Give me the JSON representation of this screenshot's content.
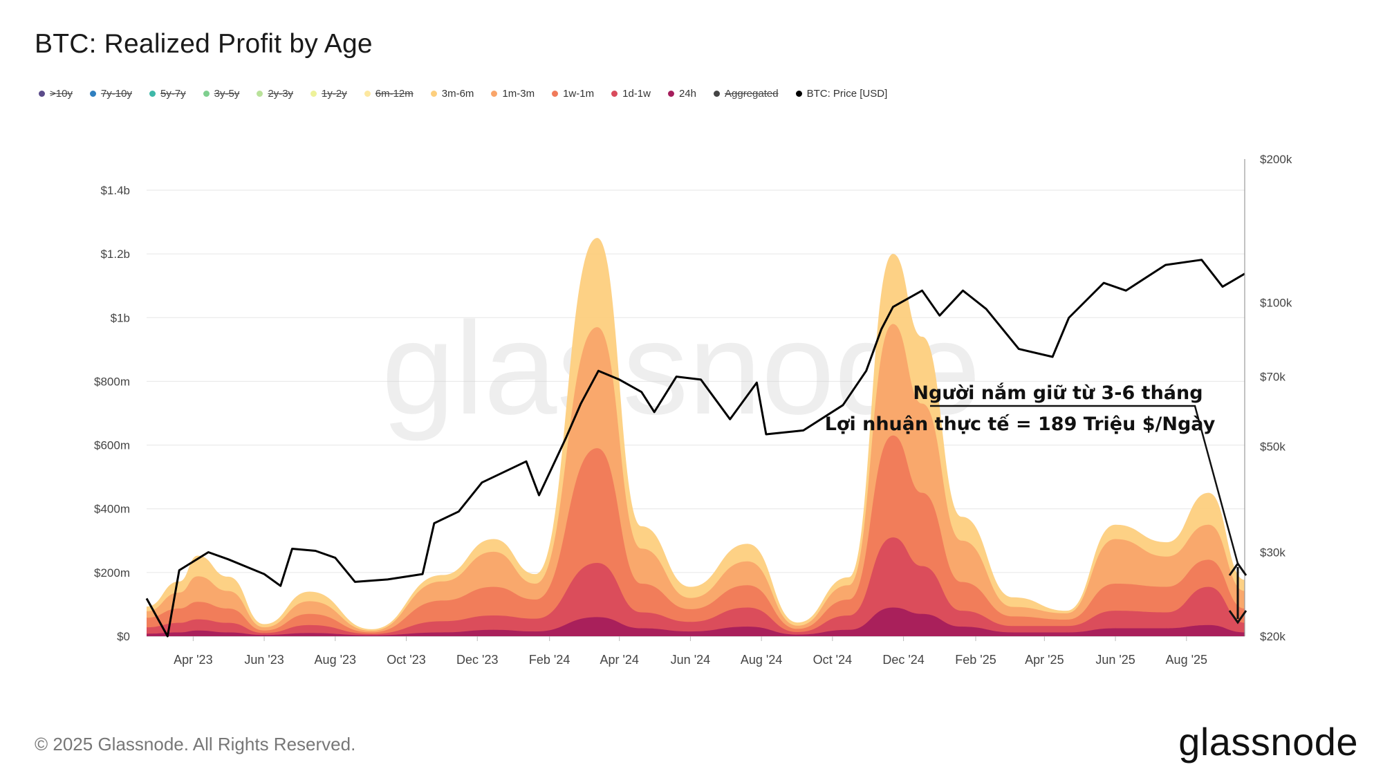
{
  "title": "BTC: Realized Profit by Age",
  "legend": [
    {
      "label": ">10y",
      "color": "#5b4b8a",
      "active": false
    },
    {
      "label": "7y-10y",
      "color": "#2f7fbf",
      "active": false
    },
    {
      "label": "5y-7y",
      "color": "#3fb8a8",
      "active": false
    },
    {
      "label": "3y-5y",
      "color": "#7fcf8f",
      "active": false
    },
    {
      "label": "2y-3y",
      "color": "#b9e29a",
      "active": false
    },
    {
      "label": "1y-2y",
      "color": "#eef29a",
      "active": false
    },
    {
      "label": "6m-12m",
      "color": "#fde8a0",
      "active": false
    },
    {
      "label": "3m-6m",
      "color": "#fdcf7e",
      "active": true
    },
    {
      "label": "1m-3m",
      "color": "#f9a56a",
      "active": true
    },
    {
      "label": "1w-1m",
      "color": "#f07a5a",
      "active": true
    },
    {
      "label": "1d-1w",
      "color": "#d94b5c",
      "active": true
    },
    {
      "label": "24h",
      "color": "#a61e5c",
      "active": true
    },
    {
      "label": "Aggregated",
      "color": "#444444",
      "active": false
    },
    {
      "label": "BTC: Price [USD]",
      "color": "#000000",
      "active": true
    }
  ],
  "chart_data": {
    "type": "area",
    "stacked": true,
    "y_left": {
      "ticks": [
        "$0",
        "$200m",
        "$400m",
        "$600m",
        "$800m",
        "$1b",
        "$1.2b",
        "$1.4b"
      ],
      "values": [
        0,
        200,
        400,
        600,
        800,
        1000,
        1200,
        1400
      ],
      "unit": "millions USD",
      "range": [
        0,
        1400
      ]
    },
    "y_right": {
      "ticks": [
        "$20k",
        "$30k",
        "$50k",
        "$70k",
        "$100k",
        "$200k"
      ],
      "values": [
        20000,
        30000,
        50000,
        70000,
        100000,
        200000
      ],
      "scale": "log",
      "range": [
        20000,
        200000
      ]
    },
    "x_ticks": [
      "Apr '23",
      "Jun '23",
      "Aug '23",
      "Oct '23",
      "Dec '23",
      "Feb '24",
      "Apr '24",
      "Jun '24",
      "Aug '24",
      "Oct '24",
      "Dec '24",
      "Feb '25",
      "Apr '25",
      "Jun '25",
      "Aug '25"
    ],
    "x_tick_dates": [
      "2023-04-01",
      "2023-06-01",
      "2023-08-01",
      "2023-10-01",
      "2023-12-01",
      "2024-02-01",
      "2024-04-01",
      "2024-06-01",
      "2024-08-01",
      "2024-10-01",
      "2024-12-01",
      "2025-02-01",
      "2025-04-01",
      "2025-06-01",
      "2025-08-01"
    ],
    "x_range": [
      "2023-02-20",
      "2025-09-20"
    ],
    "grid": true,
    "series": [
      {
        "name": "3m-6m",
        "color": "#fdcf7e",
        "x": [
          "2023-02-20",
          "2023-03-20",
          "2023-04-05",
          "2023-05-01",
          "2023-06-01",
          "2023-07-10",
          "2023-09-01",
          "2023-11-01",
          "2023-12-15",
          "2024-01-20",
          "2024-03-13",
          "2024-04-20",
          "2024-06-01",
          "2024-07-20",
          "2024-09-01",
          "2024-10-15",
          "2024-11-22",
          "2024-12-17",
          "2025-01-20",
          "2025-03-05",
          "2025-04-20",
          "2025-06-01",
          "2025-07-15",
          "2025-08-20",
          "2025-09-20"
        ],
        "values": [
          15,
          35,
          65,
          45,
          10,
          30,
          5,
          20,
          40,
          30,
          280,
          70,
          35,
          55,
          10,
          25,
          220,
          210,
          75,
          30,
          8,
          45,
          45,
          100,
          35
        ]
      },
      {
        "name": "1m-3m",
        "color": "#f9a56a",
        "x": [
          "2023-02-20",
          "2023-03-20",
          "2023-04-05",
          "2023-05-01",
          "2023-06-01",
          "2023-07-10",
          "2023-09-01",
          "2023-11-01",
          "2023-12-15",
          "2024-01-20",
          "2024-03-13",
          "2024-04-20",
          "2024-06-01",
          "2024-07-20",
          "2024-09-01",
          "2024-10-15",
          "2024-11-22",
          "2024-12-17",
          "2025-01-20",
          "2025-03-05",
          "2025-04-20",
          "2025-06-01",
          "2025-07-15",
          "2025-08-20",
          "2025-09-20"
        ],
        "values": [
          20,
          50,
          80,
          55,
          10,
          40,
          5,
          60,
          110,
          50,
          380,
          110,
          35,
          75,
          10,
          45,
          350,
          280,
          130,
          30,
          20,
          140,
          95,
          110,
          55
        ]
      },
      {
        "name": "1w-1m",
        "color": "#f07a5a",
        "x": [
          "2023-02-20",
          "2023-03-20",
          "2023-04-05",
          "2023-05-01",
          "2023-06-01",
          "2023-07-10",
          "2023-09-01",
          "2023-11-01",
          "2023-12-15",
          "2024-01-20",
          "2024-03-13",
          "2024-04-20",
          "2024-06-01",
          "2024-07-20",
          "2024-09-01",
          "2024-10-15",
          "2024-11-22",
          "2024-12-17",
          "2025-01-20",
          "2025-03-05",
          "2025-04-20",
          "2025-06-01",
          "2025-07-15",
          "2025-08-20",
          "2025-09-20"
        ],
        "values": [
          30,
          45,
          55,
          45,
          8,
          35,
          5,
          65,
          90,
          60,
          360,
          90,
          40,
          70,
          10,
          50,
          320,
          230,
          90,
          30,
          20,
          85,
          80,
          85,
          45
        ]
      },
      {
        "name": "1d-1w",
        "color": "#d94b5c",
        "x": [
          "2023-02-20",
          "2023-03-20",
          "2023-04-05",
          "2023-05-01",
          "2023-06-01",
          "2023-07-10",
          "2023-09-01",
          "2023-11-01",
          "2023-12-15",
          "2024-01-20",
          "2024-03-13",
          "2024-04-20",
          "2024-06-01",
          "2024-07-20",
          "2024-09-01",
          "2024-10-15",
          "2024-11-22",
          "2024-12-17",
          "2025-01-20",
          "2025-03-05",
          "2025-04-20",
          "2025-06-01",
          "2025-07-15",
          "2025-08-20",
          "2025-09-20"
        ],
        "values": [
          20,
          30,
          35,
          30,
          6,
          25,
          4,
          35,
          45,
          40,
          170,
          50,
          30,
          60,
          8,
          45,
          220,
          150,
          50,
          20,
          20,
          55,
          50,
          120,
          30
        ]
      },
      {
        "name": "24h",
        "color": "#a61e5c",
        "x": [
          "2023-02-20",
          "2023-03-20",
          "2023-04-05",
          "2023-05-01",
          "2023-06-01",
          "2023-07-10",
          "2023-09-01",
          "2023-11-01",
          "2023-12-15",
          "2024-01-20",
          "2024-03-13",
          "2024-04-20",
          "2024-06-01",
          "2024-07-20",
          "2024-09-01",
          "2024-10-15",
          "2024-11-22",
          "2024-12-17",
          "2025-01-20",
          "2025-03-05",
          "2025-04-20",
          "2025-06-01",
          "2025-07-15",
          "2025-08-20",
          "2025-09-20"
        ],
        "values": [
          8,
          12,
          18,
          12,
          4,
          10,
          3,
          12,
          20,
          15,
          60,
          25,
          15,
          30,
          5,
          20,
          90,
          70,
          30,
          12,
          12,
          25,
          25,
          35,
          12
        ]
      },
      {
        "name": "BTC: Price [USD]",
        "type": "line",
        "color": "#000000",
        "axis": "right",
        "x": [
          "2023-02-20",
          "2023-03-10",
          "2023-03-20",
          "2023-04-14",
          "2023-05-01",
          "2023-06-01",
          "2023-06-15",
          "2023-06-25",
          "2023-07-15",
          "2023-08-01",
          "2023-08-18",
          "2023-09-15",
          "2023-10-15",
          "2023-10-25",
          "2023-11-15",
          "2023-12-05",
          "2024-01-12",
          "2024-01-23",
          "2024-02-15",
          "2024-02-28",
          "2024-03-14",
          "2024-04-01",
          "2024-04-20",
          "2024-05-01",
          "2024-05-20",
          "2024-06-10",
          "2024-07-05",
          "2024-07-28",
          "2024-08-05",
          "2024-09-06",
          "2024-10-10",
          "2024-10-30",
          "2024-11-12",
          "2024-11-22",
          "2024-12-17",
          "2025-01-01",
          "2025-01-21",
          "2025-02-10",
          "2025-03-10",
          "2025-04-08",
          "2025-04-22",
          "2025-05-22",
          "2025-06-10",
          "2025-07-14",
          "2025-08-14",
          "2025-09-01",
          "2025-09-20"
        ],
        "values": [
          24000,
          20000,
          27500,
          30000,
          29000,
          27000,
          25500,
          30500,
          30200,
          29200,
          26000,
          26300,
          27000,
          34500,
          36500,
          42000,
          46500,
          39500,
          52000,
          61500,
          72000,
          69000,
          65000,
          59000,
          70000,
          69000,
          57000,
          68000,
          53000,
          54000,
          61000,
          72000,
          88000,
          98000,
          106000,
          94000,
          106000,
          97000,
          80000,
          77000,
          93000,
          110000,
          106000,
          120000,
          123000,
          108000,
          115000
        ]
      }
    ],
    "annotation": {
      "line1": "Người nắm giữ từ 3-6 tháng",
      "line2": "Lợi nhuận thực tế = 189 Triệu $/Ngày"
    }
  },
  "watermark": "glassnode",
  "footer": "© 2025 Glassnode. All Rights Reserved.",
  "brand": "glassnode"
}
